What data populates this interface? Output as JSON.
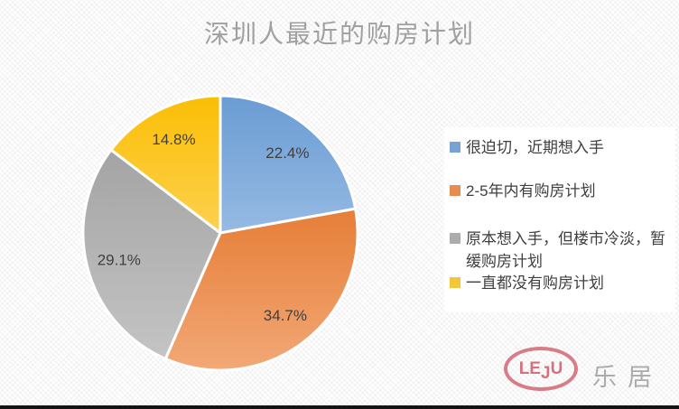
{
  "title": "深圳人最近的购房计划",
  "chart_data": {
    "type": "pie",
    "title": "深圳人最近的购房计划",
    "start_angle_deg": 0,
    "direction": "clockwise",
    "legend_position": "right",
    "slices": [
      {
        "label": "很迫切，近期想入手",
        "value": 22.4,
        "display": "22.4%",
        "color_top": "#6A9CD3",
        "color_bottom": "#96BAE3",
        "legend_color": "#76A3D3"
      },
      {
        "label": "2-5年内有购房计划",
        "value": 34.7,
        "display": "34.7%",
        "color_top": "#E67E38",
        "color_bottom": "#F2A876",
        "legend_color": "#E98C52"
      },
      {
        "label": "原本想入手，但楼市冷淡，暂缓购房计划",
        "value": 29.1,
        "display": "29.1%",
        "color_top": "#A4A4A4",
        "color_bottom": "#C4C4C4",
        "legend_color": "#ACACAC"
      },
      {
        "label": "一直都没有购房计划",
        "value": 14.8,
        "display": "14.8%",
        "color_top": "#FBBE05",
        "color_bottom": "#FDD14F",
        "legend_color": "#F2C73A"
      }
    ],
    "label_color": "#3F3F3F",
    "title_color": "#A0A0A0"
  },
  "logo": {
    "latin": "LEJU",
    "cjk": "乐居",
    "latin_color": "#D8707D",
    "cjk_color": "#ABABAB"
  }
}
